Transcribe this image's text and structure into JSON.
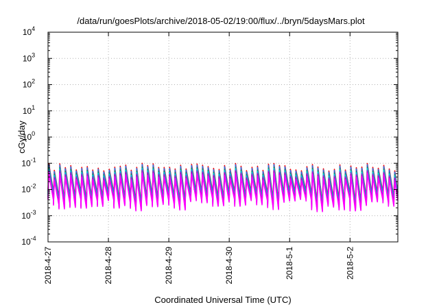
{
  "chart_data": {
    "type": "line",
    "title": "/data/run/goesPlots/archive/2018-05-02/19:00/flux/../bryn/5daysMars.plot",
    "xlabel": "Coordinated Universal Time (UTC)",
    "ylabel": "cGy/day",
    "yscale": "log",
    "ylim": [
      0.0001,
      10000
    ],
    "y_ticks": [
      {
        "base": "10",
        "exp": "4"
      },
      {
        "base": "10",
        "exp": "3"
      },
      {
        "base": "10",
        "exp": "2"
      },
      {
        "base": "10",
        "exp": "1"
      },
      {
        "base": "10",
        "exp": "0"
      },
      {
        "base": "10",
        "exp": "-1"
      },
      {
        "base": "10",
        "exp": "-2"
      },
      {
        "base": "10",
        "exp": "-3"
      },
      {
        "base": "10",
        "exp": "-4"
      }
    ],
    "x_ticks": [
      "2018-4-27",
      "2018-4-28",
      "2018-4-29",
      "2018-4-30",
      "2018-5-1",
      "2018-5-2"
    ],
    "xlim": [
      "2018-04-27T00:00",
      "2018-05-02T19:00"
    ],
    "grid": true,
    "legend": "none",
    "envelope": {
      "note": "sawtooth oscillation, roughly 11 cycles per day",
      "peak_range": [
        0.05,
        0.1
      ],
      "trough_range": [
        0.002,
        0.006
      ]
    },
    "series": [
      {
        "color": "#ff0000",
        "level": 1.0
      },
      {
        "color": "#2f6fe0",
        "level": 0.85
      },
      {
        "color": "#1a9850",
        "level": 0.55
      },
      {
        "color": "#00c8e0",
        "level": 0.45
      },
      {
        "color": "#8a2be2",
        "level": 0.3
      },
      {
        "color": "#c000c0",
        "level": 0.2
      },
      {
        "color": "#ff00ff",
        "level": 0.12
      }
    ]
  }
}
